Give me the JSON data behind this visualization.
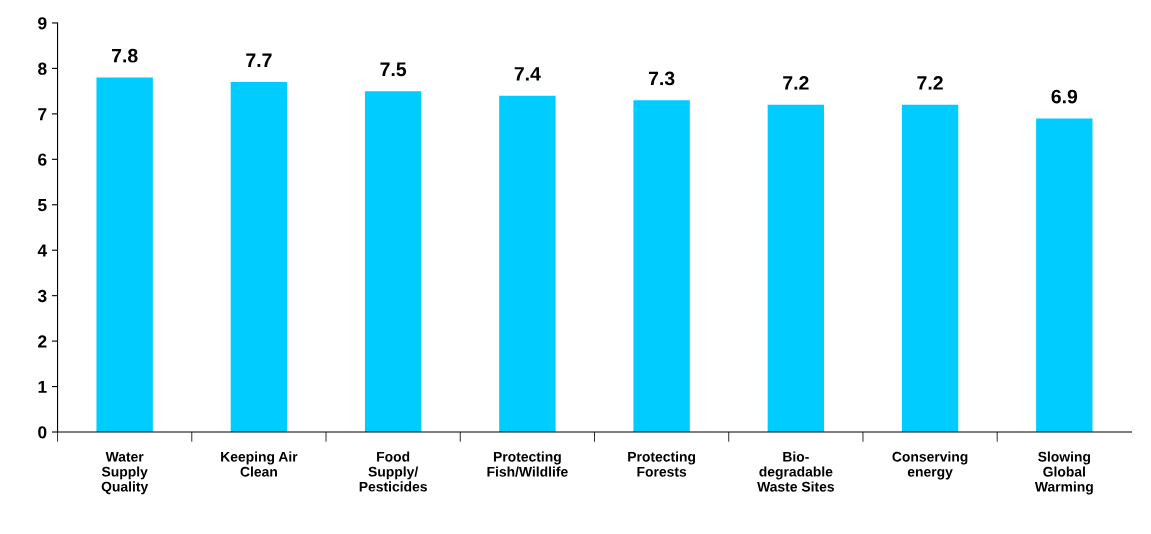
{
  "chart_data": {
    "type": "bar",
    "categories": [
      "Water\nSupply\nQuality",
      "Keeping Air\nClean",
      "Food\nSupply/\nPesticides",
      "Protecting\nFish/Wildlife",
      "Protecting\nForests",
      "Bio-\ndegradable\nWaste Sites",
      "Conserving\nenergy",
      "Slowing\nGlobal\nWarming"
    ],
    "values": [
      7.8,
      7.7,
      7.5,
      7.4,
      7.3,
      7.2,
      7.2,
      6.9
    ],
    "color": "#00ccff",
    "ylim": [
      0,
      9
    ],
    "yticks": [
      0,
      1,
      2,
      3,
      4,
      5,
      6,
      7,
      8,
      9
    ],
    "data_labels": true,
    "grid": false,
    "legend": false
  }
}
